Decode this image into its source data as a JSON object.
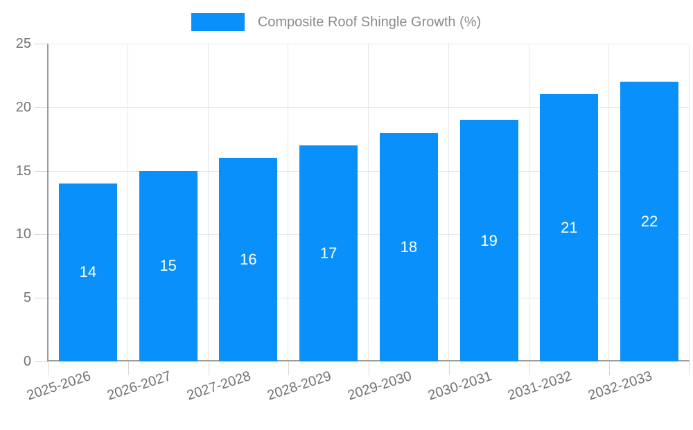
{
  "legend": {
    "label": "Composite Roof Shingle Growth (%)"
  },
  "colors": {
    "bar": "#0990FA",
    "grid": "#e6e6e6",
    "tick": "#d6d6d6",
    "axis_border": "#9c9c9c",
    "axis_text": "#737373",
    "legend_text": "#8a8a8a",
    "value_text": "#ffffff",
    "background": "#ffffff"
  },
  "chart_data": {
    "type": "bar",
    "title": "Composite Roof Shingle Growth (%)",
    "categories": [
      "2025-2026",
      "2026-2027",
      "2027-2028",
      "2028-2029",
      "2029-2030",
      "2030-2031",
      "2031-2032",
      "2032-2033"
    ],
    "values": [
      14,
      15,
      16,
      17,
      18,
      19,
      21,
      22
    ],
    "series": [
      {
        "name": "Composite Roof Shingle Growth (%)",
        "values": [
          14,
          15,
          16,
          17,
          18,
          19,
          21,
          22
        ]
      }
    ],
    "xlabel": "",
    "ylabel": "",
    "ylim": [
      0,
      25
    ],
    "yticks": [
      0,
      5,
      10,
      15,
      20,
      25
    ],
    "grid": true,
    "legend_position": "top-center",
    "value_labels": "inside-center",
    "x_tick_rotation_deg": -18
  }
}
